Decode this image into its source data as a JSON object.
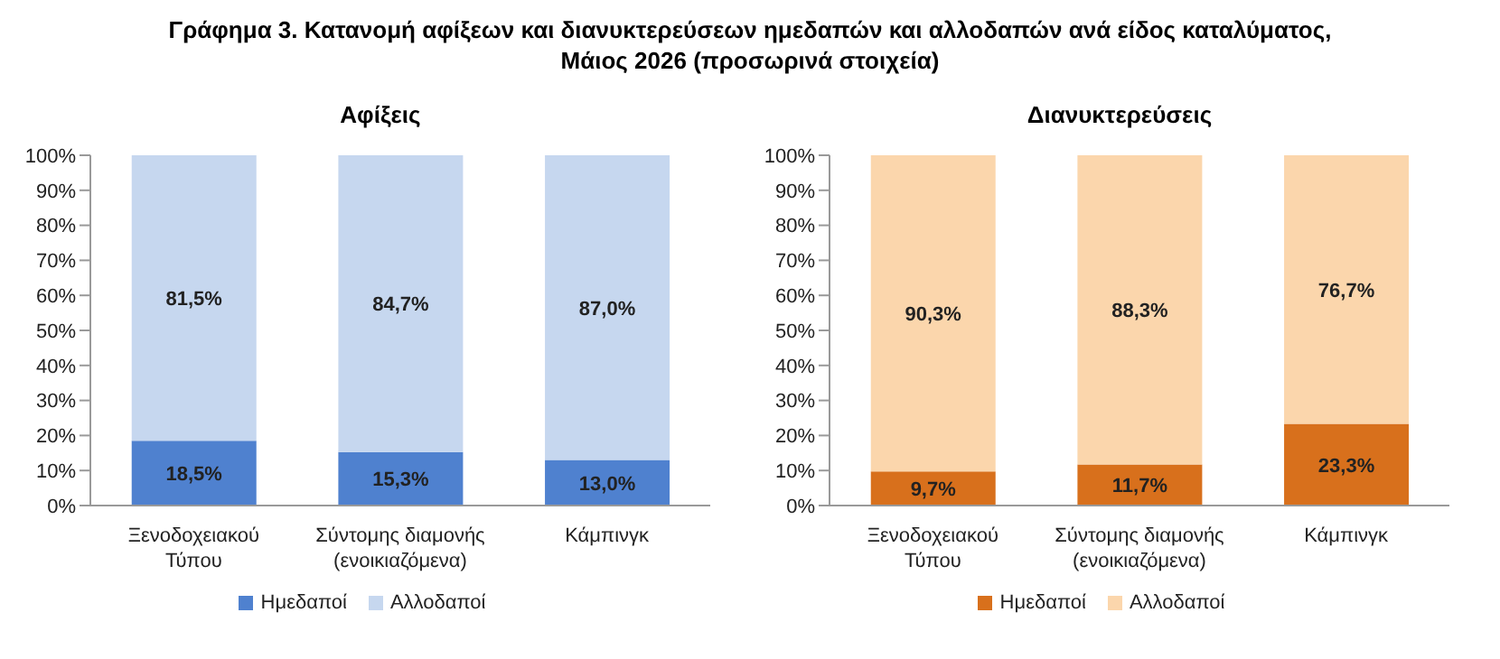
{
  "chart_data": [
    {
      "type": "bar",
      "title": "Αφίξεις",
      "stacked": true,
      "legend": "bottom",
      "annotations": [
        "Γράφημα 3. Κατανομή αφίξεων και διανυκτερεύσεων ημεδαπών και αλλοδαπών ανά είδος καταλύματος,\nΜάιος 2026 (προσωρινά στοιχεία)"
      ],
      "categories": [
        "Ξενοδοχειακού\nΤύπου",
        "Σύντομης διαμονής\n(ενοικιαζόμενα)",
        "Κάμπινγκ"
      ],
      "ylim": [
        0,
        100
      ],
      "yticks": [
        {
          "value": 0,
          "label": "0%"
        },
        {
          "value": 10,
          "label": "10%"
        },
        {
          "value": 20,
          "label": "20%"
        },
        {
          "value": 30,
          "label": "30%"
        },
        {
          "value": 40,
          "label": "40%"
        },
        {
          "value": 50,
          "label": "50%"
        },
        {
          "value": 60,
          "label": "60%"
        },
        {
          "value": 70,
          "label": "70%"
        },
        {
          "value": 80,
          "label": "80%"
        },
        {
          "value": 90,
          "label": "90%"
        },
        {
          "value": 100,
          "label": "100%"
        }
      ],
      "series": [
        {
          "name": "Ημεδαποί",
          "color": "#4f81cf",
          "values": [
            18.5,
            15.3,
            13.0
          ],
          "value_labels": [
            "18,5%",
            "15,3%",
            "13,0%"
          ]
        },
        {
          "name": "Αλλοδαποί",
          "color": "#c6d7ef",
          "values": [
            81.5,
            84.7,
            87.0
          ],
          "value_labels": [
            "81,5%",
            "84,7%",
            "87,0%"
          ]
        }
      ]
    },
    {
      "type": "bar",
      "title": "Διανυκτερεύσεις",
      "stacked": true,
      "legend": "bottom",
      "categories": [
        "Ξενοδοχειακού\nΤύπου",
        "Σύντομης διαμονής\n(ενοικιαζόμενα)",
        "Κάμπινγκ"
      ],
      "ylim": [
        0,
        100
      ],
      "yticks": [
        {
          "value": 0,
          "label": "0%"
        },
        {
          "value": 10,
          "label": "10%"
        },
        {
          "value": 20,
          "label": "20%"
        },
        {
          "value": 30,
          "label": "30%"
        },
        {
          "value": 40,
          "label": "40%"
        },
        {
          "value": 50,
          "label": "50%"
        },
        {
          "value": 60,
          "label": "60%"
        },
        {
          "value": 70,
          "label": "70%"
        },
        {
          "value": 80,
          "label": "80%"
        },
        {
          "value": 90,
          "label": "90%"
        },
        {
          "value": 100,
          "label": "100%"
        }
      ],
      "series": [
        {
          "name": "Ημεδαποί",
          "color": "#d8701c",
          "values": [
            9.7,
            11.7,
            23.3
          ],
          "value_labels": [
            "9,7%",
            "11,7%",
            "23,3%"
          ]
        },
        {
          "name": "Αλλοδαποί",
          "color": "#fbd6ac",
          "values": [
            90.3,
            88.3,
            76.7
          ],
          "value_labels": [
            "90,3%",
            "88,3%",
            "76,7%"
          ]
        }
      ]
    }
  ]
}
